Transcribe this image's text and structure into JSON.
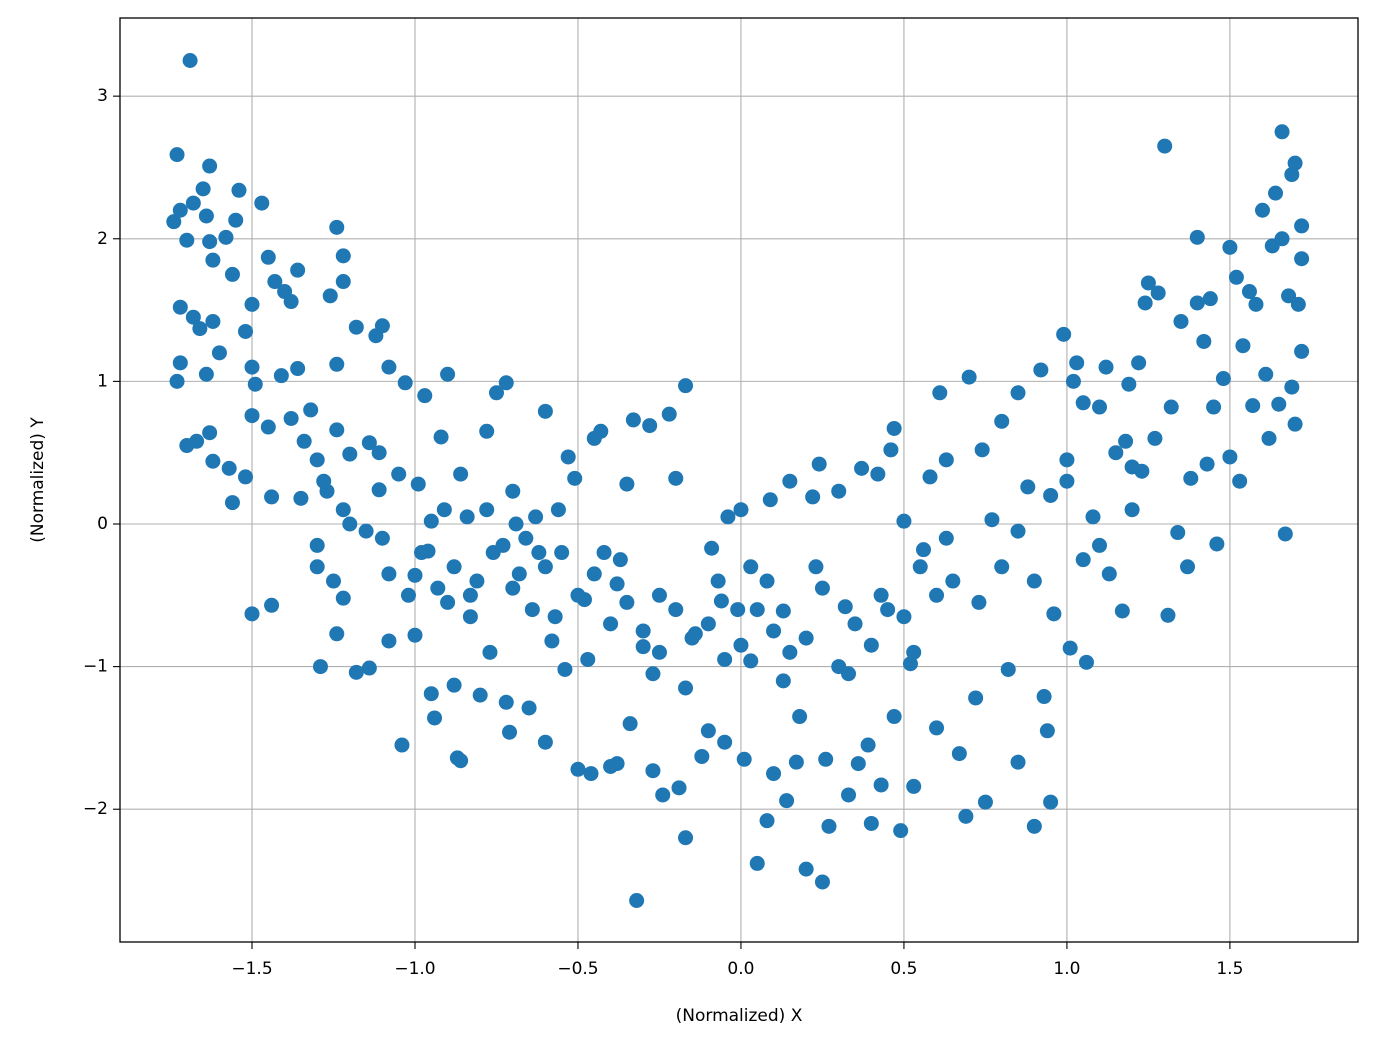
{
  "chart_data": {
    "type": "scatter",
    "x_label": "(Normalized) X",
    "y_label": "(Normalized) Y",
    "color": "#1f77b4",
    "grid": true,
    "xlim": [
      -1.905,
      1.893
    ],
    "ylim": [
      -2.931,
      3.548
    ],
    "xticks": [
      {
        "value": -1.5,
        "label": "−1.5"
      },
      {
        "value": -1,
        "label": "−1.0"
      },
      {
        "value": -0.5,
        "label": "−0.5"
      },
      {
        "value": 0,
        "label": "0.0"
      },
      0.5,
      {
        "value": 1,
        "label": "1.0"
      },
      1.5
    ],
    "yticks": [
      {
        "value": -2,
        "label": "−2"
      },
      {
        "value": -1,
        "label": "−1"
      },
      0,
      1,
      2,
      3
    ],
    "x": [
      -1.69,
      -1.73,
      -1.72,
      -1.74,
      -1.7,
      -1.68,
      -1.65,
      -1.63,
      -1.64,
      -1.63,
      -1.62,
      -1.58,
      -1.56,
      -1.55,
      -1.54,
      -1.5,
      -1.47,
      -1.45,
      -1.43,
      -1.4,
      -1.36,
      -1.38,
      -1.72,
      -1.68,
      -1.66,
      -1.62,
      -1.6,
      -1.64,
      -1.72,
      -1.73,
      -1.7,
      -1.67,
      -1.63,
      -1.62,
      -1.57,
      -1.56,
      -1.52,
      -1.5,
      -1.49,
      -1.5,
      -1.52,
      -1.45,
      -1.44,
      -1.41,
      -1.38,
      -1.36,
      -1.34,
      -1.32,
      -1.3,
      -1.35,
      -1.5,
      -1.44,
      -1.3,
      -1.29,
      -1.27,
      -1.24,
      -1.22,
      -1.22,
      -1.26,
      -1.24,
      -1.24,
      -1.2,
      -1.22,
      -1.25,
      -1.22,
      -1.24,
      -1.18,
      -1.14,
      -1.18,
      -1.12,
      -1.1,
      -1.08,
      -1.14,
      -1.11,
      -1.11,
      -1.1,
      -1.08,
      -1.08,
      -1.04,
      -1.05,
      -1.03,
      -1.0,
      -1.0,
      -0.99,
      -0.97,
      -0.96,
      -0.95,
      -0.94,
      -0.95,
      -0.92,
      -0.9,
      -0.9,
      -0.88,
      -0.87,
      -0.86,
      -0.86,
      -0.84,
      -0.83,
      -0.8,
      -0.78,
      -0.77,
      -0.75,
      -0.72,
      -0.72,
      -0.71,
      -0.7,
      -0.7,
      -0.69,
      -0.65,
      -0.64,
      -0.62,
      -0.6,
      -0.6,
      -0.58,
      -0.56,
      -0.54,
      -0.53,
      -0.5,
      -0.51,
      -0.48,
      -0.46,
      -0.45,
      -0.43,
      -0.42,
      -0.4,
      -0.38,
      -0.38,
      -0.35,
      -0.34,
      -0.33,
      -0.32,
      -0.3,
      -0.28,
      -0.27,
      -0.25,
      -0.24,
      -0.22,
      -0.2,
      -0.19,
      -0.17,
      -0.17,
      -0.14,
      -0.12,
      -0.1,
      -0.09,
      -0.06,
      -0.05,
      -0.04,
      -0.01,
      0.01,
      0.0,
      0.03,
      0.05,
      0.08,
      0.09,
      0.1,
      0.08,
      0.13,
      0.14,
      0.15,
      0.17,
      0.18,
      0.2,
      0.22,
      0.24,
      0.25,
      0.26,
      0.27,
      0.3,
      0.32,
      0.33,
      0.36,
      0.37,
      0.39,
      0.4,
      0.42,
      0.43,
      0.46,
      0.47,
      0.47,
      0.49,
      0.5,
      0.52,
      0.53,
      0.56,
      0.58,
      0.6,
      0.61,
      0.63,
      0.67,
      0.69,
      0.7,
      0.72,
      0.74,
      0.75,
      0.77,
      0.8,
      0.82,
      0.85,
      0.85,
      0.88,
      0.9,
      0.92,
      0.93,
      0.94,
      0.95,
      0.96,
      0.99,
      1.0,
      1.01,
      1.02,
      1.03,
      1.05,
      1.06,
      1.08,
      1.1,
      1.12,
      1.13,
      1.15,
      1.17,
      1.18,
      1.19,
      1.2,
      1.22,
      1.23,
      1.24,
      1.25,
      1.27,
      1.28,
      1.3,
      1.31,
      1.32,
      1.34,
      1.35,
      1.37,
      1.38,
      1.4,
      1.4,
      1.42,
      1.43,
      1.44,
      1.45,
      1.46,
      1.48,
      1.5,
      1.5,
      1.52,
      1.53,
      1.54,
      1.56,
      1.57,
      1.58,
      1.6,
      1.61,
      1.62,
      1.63,
      1.64,
      1.65,
      1.66,
      1.67,
      1.68,
      1.69,
      1.7,
      1.7,
      1.71,
      1.72,
      1.72,
      1.72,
      1.69,
      1.66,
      -0.6,
      -0.55,
      -0.5,
      -0.45,
      -0.4,
      -0.35,
      -0.3,
      -0.25,
      -0.2,
      -0.15,
      -0.1,
      -0.05,
      0.0,
      0.05,
      0.1,
      0.15,
      0.2,
      0.25,
      0.3,
      0.35,
      0.4,
      0.45,
      0.5,
      0.55,
      0.6,
      0.65,
      -0.57,
      -0.47,
      -0.37,
      -0.27,
      -0.17,
      -0.07,
      0.03,
      0.13,
      0.23,
      0.33,
      0.43,
      0.53,
      0.63,
      0.73,
      -0.98,
      -0.93,
      -0.88,
      -0.83,
      -0.78,
      -0.73,
      -0.68,
      -0.63,
      -1.02,
      -0.91,
      -0.81,
      -0.76,
      -0.66,
      -1.15,
      -1.2,
      -1.3,
      -1.28,
      0.8,
      0.9,
      1.0,
      1.1,
      0.85,
      0.95,
      1.05,
      1.2
    ],
    "values": [
      3.25,
      2.59,
      2.2,
      2.12,
      1.99,
      2.25,
      2.35,
      2.51,
      2.16,
      1.98,
      1.85,
      2.01,
      1.75,
      2.13,
      2.34,
      1.54,
      2.25,
      1.87,
      1.7,
      1.63,
      1.78,
      1.56,
      1.52,
      1.45,
      1.37,
      1.42,
      1.2,
      1.05,
      1.13,
      1.0,
      0.55,
      0.58,
      0.64,
      0.44,
      0.39,
      0.15,
      0.33,
      0.76,
      0.98,
      1.1,
      1.35,
      0.68,
      0.19,
      1.04,
      0.74,
      1.09,
      0.58,
      0.8,
      0.45,
      0.18,
      -0.63,
      -0.57,
      -0.15,
      -1.0,
      0.23,
      2.08,
      1.88,
      1.7,
      1.6,
      1.12,
      0.66,
      0.49,
      0.1,
      -0.4,
      -0.52,
      -0.77,
      -1.04,
      -1.01,
      1.38,
      1.32,
      1.39,
      1.1,
      0.57,
      0.5,
      0.24,
      -0.1,
      -0.35,
      -0.82,
      -1.55,
      0.35,
      0.99,
      -0.36,
      -0.78,
      0.28,
      0.9,
      -0.19,
      -1.19,
      -1.36,
      0.02,
      0.61,
      1.05,
      -0.55,
      -1.13,
      -1.64,
      -1.66,
      0.35,
      0.05,
      -0.65,
      -1.2,
      0.65,
      -0.9,
      0.92,
      0.99,
      -1.25,
      -1.46,
      -0.45,
      0.23,
      0.0,
      -1.29,
      -0.6,
      -0.2,
      0.79,
      -1.53,
      -0.82,
      0.1,
      -1.02,
      0.47,
      -1.72,
      0.32,
      -0.53,
      -1.75,
      0.6,
      0.65,
      -0.2,
      -1.7,
      -1.68,
      -0.42,
      0.28,
      -1.4,
      0.73,
      -2.64,
      -0.86,
      0.69,
      -1.73,
      -0.5,
      -1.9,
      0.77,
      0.32,
      -1.85,
      0.97,
      -2.2,
      -0.77,
      -1.63,
      -1.45,
      -0.17,
      -0.54,
      -1.53,
      0.05,
      -0.6,
      -1.65,
      0.1,
      -0.96,
      -2.38,
      -0.4,
      0.17,
      -1.75,
      -2.08,
      -0.61,
      -1.94,
      0.3,
      -1.67,
      -1.35,
      -2.42,
      0.19,
      0.42,
      -2.51,
      -1.65,
      -2.12,
      0.23,
      -0.58,
      -1.9,
      -1.68,
      0.39,
      -1.55,
      -2.1,
      0.35,
      -1.83,
      0.52,
      0.67,
      -1.35,
      -2.15,
      0.02,
      -0.98,
      -1.84,
      -0.18,
      0.33,
      -1.43,
      0.92,
      0.45,
      -1.61,
      -2.05,
      1.03,
      -1.22,
      0.52,
      -1.95,
      0.03,
      0.72,
      -1.02,
      -1.67,
      0.92,
      0.26,
      -2.12,
      1.08,
      -1.21,
      -1.45,
      -1.95,
      -0.63,
      1.33,
      0.45,
      -0.87,
      1.0,
      1.13,
      0.85,
      -0.97,
      0.05,
      0.82,
      1.1,
      -0.35,
      0.5,
      -0.61,
      0.58,
      0.98,
      0.1,
      1.13,
      0.37,
      1.55,
      1.69,
      0.6,
      1.62,
      2.65,
      -0.64,
      0.82,
      -0.06,
      1.42,
      -0.3,
      0.32,
      2.01,
      1.55,
      1.28,
      0.42,
      1.58,
      0.82,
      -0.14,
      1.02,
      1.94,
      0.47,
      1.73,
      0.3,
      1.25,
      1.63,
      0.83,
      1.54,
      2.2,
      1.05,
      0.6,
      1.95,
      2.32,
      0.84,
      2.75,
      -0.07,
      1.6,
      2.45,
      0.7,
      2.53,
      1.54,
      1.86,
      1.21,
      2.09,
      0.96,
      2.0,
      -0.3,
      -0.2,
      -0.5,
      -0.35,
      -0.7,
      -0.55,
      -0.75,
      -0.9,
      -0.6,
      -0.8,
      -0.7,
      -0.95,
      -0.85,
      -0.6,
      -0.75,
      -0.9,
      -0.8,
      -0.45,
      -1.0,
      -0.7,
      -0.85,
      -0.6,
      -0.65,
      -0.3,
      -0.5,
      -0.4,
      -0.65,
      -0.95,
      -0.25,
      -1.05,
      -1.15,
      -0.4,
      -0.3,
      -1.1,
      -0.3,
      -1.05,
      -0.5,
      -0.9,
      -0.1,
      -0.55,
      -0.2,
      -0.45,
      -0.3,
      -0.5,
      0.1,
      -0.15,
      -0.35,
      0.05,
      -0.5,
      0.1,
      -0.4,
      -0.2,
      -0.1,
      -0.05,
      0.0,
      -0.3,
      0.3,
      -0.3,
      -0.4,
      0.3,
      -0.15,
      -0.05,
      0.2,
      -0.25,
      0.4
    ]
  }
}
